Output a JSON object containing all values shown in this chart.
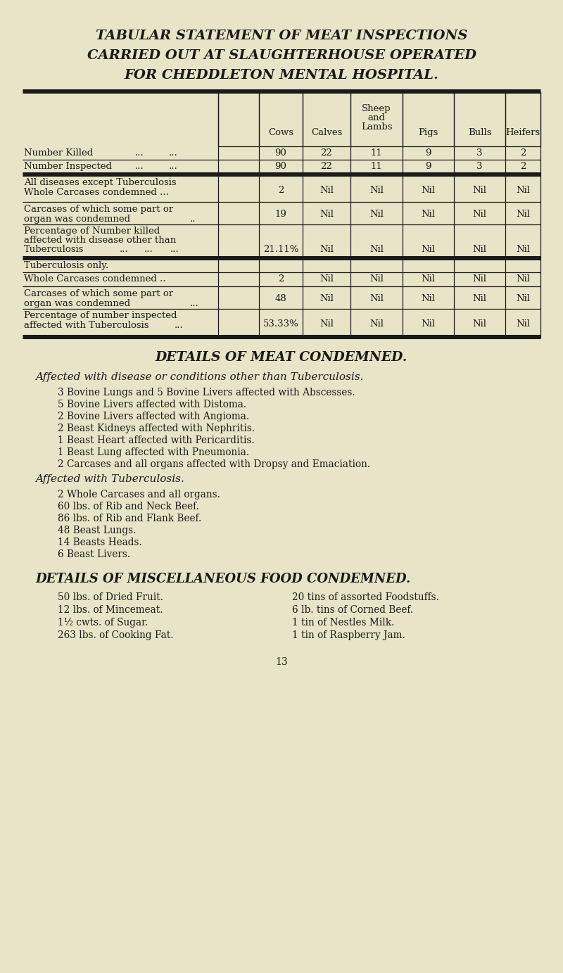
{
  "bg_color": "#e8e4c8",
  "text_color": "#1a1a1a",
  "title_lines": [
    "TABULAR STATEMENT OF MEAT INSPECTIONS",
    "CARRIED OUT AT SLAUGHTERHOUSE OPERATED",
    "FOR CHEDDLETON MENTAL HOSPITAL."
  ],
  "num_killed": [
    "90",
    "22",
    "11",
    "9",
    "3",
    "2"
  ],
  "num_inspected": [
    "90",
    "22",
    "11",
    "9",
    "3",
    "2"
  ],
  "s1r1_vals": [
    "2",
    "Nil",
    "Nil",
    "Nil",
    "Nil",
    "Nil"
  ],
  "s1r2_vals": [
    "19",
    "Nil",
    "Nil",
    "Nil",
    "Nil",
    "Nil"
  ],
  "s1r3_vals": [
    "21.11%",
    "Nil",
    "Nil",
    "Nil",
    "Nil",
    "Nil"
  ],
  "s2r1_vals": [
    "2",
    "Nil",
    "Nil",
    "Nil",
    "Nil",
    "Nil"
  ],
  "s2r2_vals": [
    "48",
    "Nil",
    "Nil",
    "Nil",
    "Nil",
    "Nil"
  ],
  "s2r3_vals": [
    "53.33%",
    "Nil",
    "Nil",
    "Nil",
    "Nil",
    "Nil"
  ],
  "meat_condemned_title": "DETAILS OF MEAT CONDEMNED.",
  "meat_condemned_sub1": "Affected with disease or conditions other than Tuberculosis.",
  "meat_condemned_items1": [
    "3 Bovine Lungs and 5 Bovine Livers affected with Abscesses.",
    "5 Bovine Livers affected with Distoma.",
    "2 Bovine Livers affected with Angioma.",
    "2 Beast Kidneys affected with Nephritis.",
    "1 Beast Heart affected with Pericarditis.",
    "1 Beast Lung affected with Pneumonia.",
    "2 Carcases and all organs affected with Dropsy and Emaciation."
  ],
  "meat_condemned_sub2": "Affected with Tuberculosis.",
  "meat_condemned_items2": [
    "2 Whole Carcases and all organs.",
    "60 lbs. of Rib and Neck Beef.",
    "86 lbs. of Rib and Flank Beef.",
    "48 Beast Lungs.",
    "14 Beasts Heads.",
    "6 Beast Livers."
  ],
  "misc_food_title": "DETAILS OF MISCELLANEOUS FOOD CONDEMNED.",
  "misc_food_col1": [
    "50 lbs. of Dried Fruit.",
    "12 lbs. of Mincemeat.",
    "1½ cwts. of Sugar.",
    "263 lbs. of Cooking Fat."
  ],
  "misc_food_col2": [
    "20 tins of assorted Foodstuffs.",
    "6 lb. tins of Corned Beef.",
    "1 tin of Nestles Milk.",
    "1 tin of Raspberry Jam."
  ],
  "page_number": "13"
}
